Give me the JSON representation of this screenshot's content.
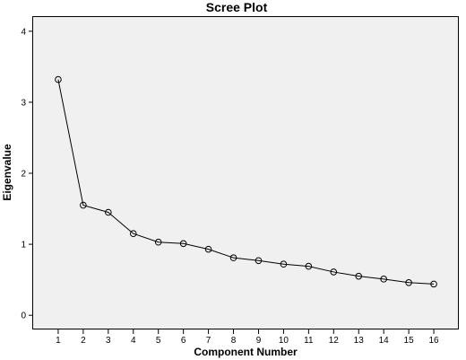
{
  "chart_data": {
    "type": "line",
    "title": "Scree Plot",
    "xlabel": "Component Number",
    "ylabel": "Eigenvalue",
    "x": [
      1,
      2,
      3,
      4,
      5,
      6,
      7,
      8,
      9,
      10,
      11,
      12,
      13,
      14,
      15,
      16
    ],
    "y": [
      3.32,
      1.55,
      1.45,
      1.15,
      1.03,
      1.01,
      0.93,
      0.81,
      0.77,
      0.72,
      0.69,
      0.61,
      0.55,
      0.51,
      0.46,
      0.44
    ],
    "xlim": [
      0,
      17
    ],
    "ylim": [
      -0.2,
      4.2
    ],
    "x_ticks": [
      "1",
      "2",
      "3",
      "4",
      "5",
      "6",
      "7",
      "8",
      "9",
      "10",
      "11",
      "12",
      "13",
      "14",
      "15",
      "16"
    ],
    "y_ticks": [
      "0",
      "1",
      "2",
      "3",
      "4"
    ],
    "grid": false,
    "marker": "open-circle",
    "colors": {
      "line": "#000000",
      "plot_background": "#f0f0f0"
    }
  }
}
